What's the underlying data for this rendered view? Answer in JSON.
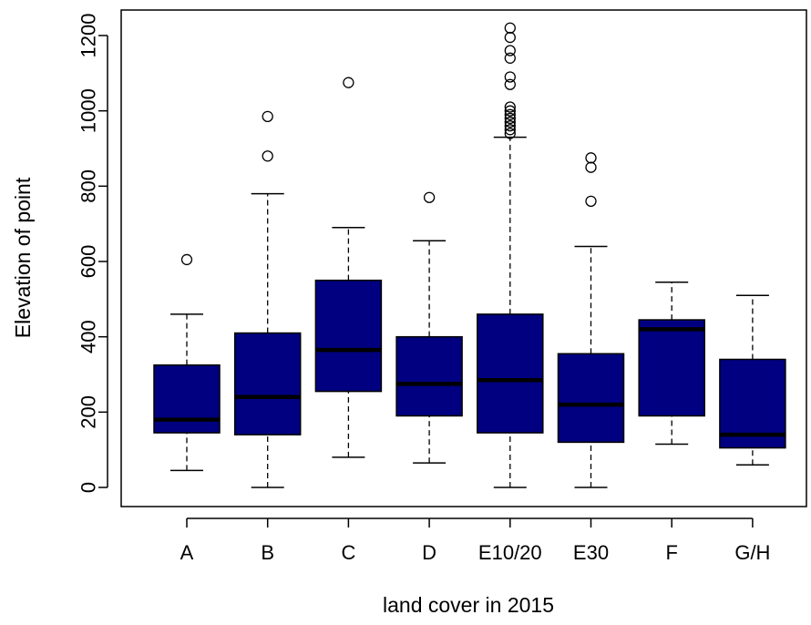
{
  "chart_data": {
    "type": "boxplot",
    "xlabel": "land cover in 2015",
    "ylabel": "Elevation of point",
    "ylim": [
      -50,
      1250
    ],
    "yticks": [
      0,
      200,
      400,
      600,
      800,
      1000,
      1200
    ],
    "ytick_labels": [
      "0",
      "200",
      "400",
      "600",
      "800",
      "1000",
      "1200"
    ],
    "box_color": "#000080",
    "categories": [
      "A",
      "B",
      "C",
      "D",
      "E10/20",
      "E30",
      "F",
      "G/H"
    ],
    "boxes": [
      {
        "category": "A",
        "whisker_low": 45,
        "q1": 145,
        "median": 180,
        "q3": 325,
        "whisker_high": 460,
        "outliers": [
          605
        ]
      },
      {
        "category": "B",
        "whisker_low": 0,
        "q1": 140,
        "median": 240,
        "q3": 410,
        "whisker_high": 780,
        "outliers": [
          880,
          985
        ]
      },
      {
        "category": "C",
        "whisker_low": 80,
        "q1": 255,
        "median": 365,
        "q3": 550,
        "whisker_high": 690,
        "outliers": [
          1075
        ]
      },
      {
        "category": "D",
        "whisker_low": 65,
        "q1": 190,
        "median": 275,
        "q3": 400,
        "whisker_high": 655,
        "outliers": [
          770
        ]
      },
      {
        "category": "E10/20",
        "whisker_low": 0,
        "q1": 145,
        "median": 285,
        "q3": 460,
        "whisker_high": 930,
        "outliers": [
          940,
          950,
          960,
          970,
          980,
          990,
          1000,
          1010,
          1070,
          1090,
          1140,
          1160,
          1195,
          1220
        ]
      },
      {
        "category": "E30",
        "whisker_low": 0,
        "q1": 120,
        "median": 220,
        "q3": 355,
        "whisker_high": 640,
        "outliers": [
          760,
          850,
          875
        ]
      },
      {
        "category": "F",
        "whisker_low": 115,
        "q1": 190,
        "median": 420,
        "q3": 445,
        "whisker_high": 545,
        "outliers": []
      },
      {
        "category": "G/H",
        "whisker_low": 60,
        "q1": 105,
        "median": 140,
        "q3": 340,
        "whisker_high": 510,
        "outliers": []
      }
    ]
  }
}
